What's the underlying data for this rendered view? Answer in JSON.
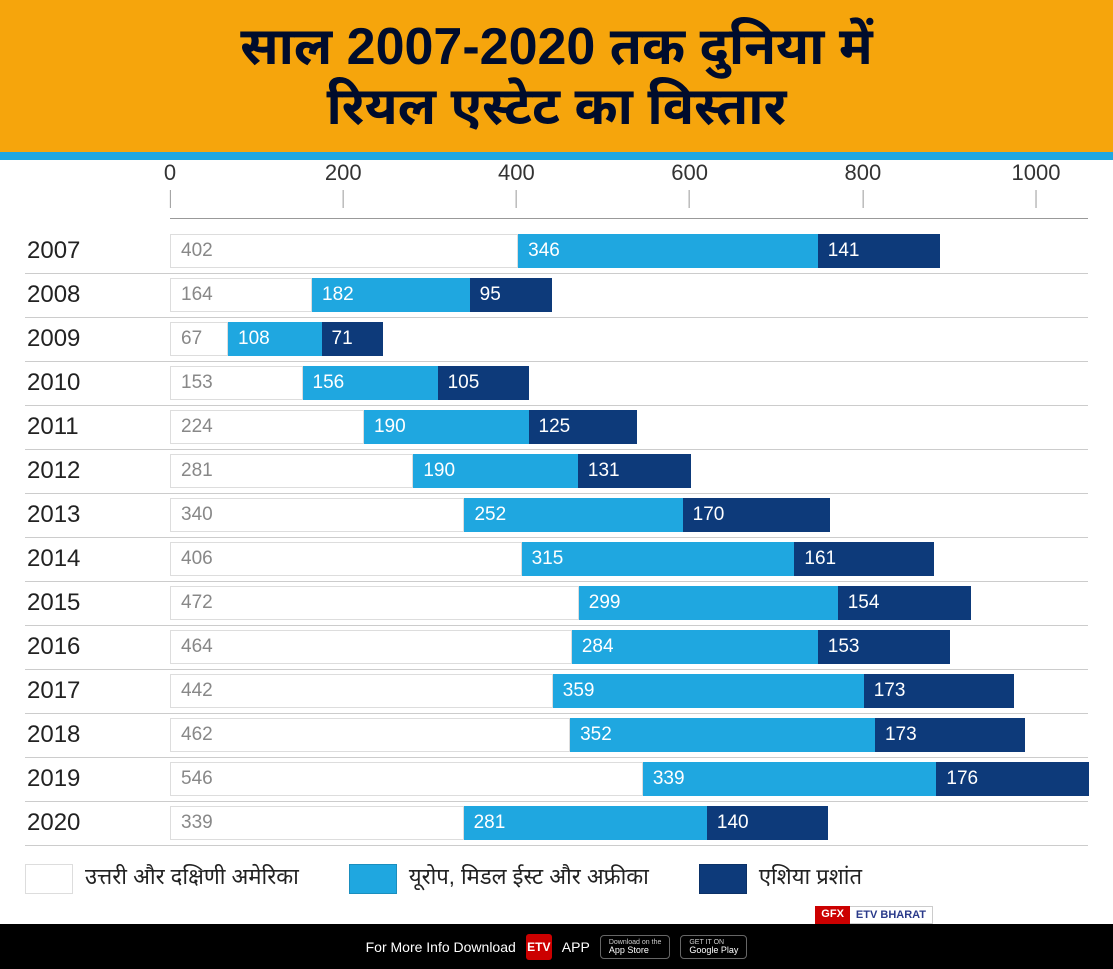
{
  "header": {
    "line1": "साल 2007-2020 तक दुनिया में",
    "line2": "रियल एस्टेट का विस्तार",
    "background_color": "#f6a50c",
    "text_color": "#000c2c",
    "font_size": 52
  },
  "divider_color": "#1fa7e0",
  "chart": {
    "type": "stacked-horizontal-bar",
    "x_axis": {
      "min": 0,
      "max": 1060,
      "ticks": [
        0,
        200,
        400,
        600,
        800,
        1000
      ],
      "tick_color": "#999999",
      "label_color": "#333333",
      "label_fontsize": 22
    },
    "series": [
      {
        "key": "americas",
        "label": "उत्तरी और दक्षिणी अमेरिका",
        "color": "#ffffff",
        "text_color": "#888888",
        "border": "#dddddd"
      },
      {
        "key": "emea",
        "label": "यूरोप, मिडल ईस्ट और अफ्रीका",
        "color": "#1fa7e0",
        "text_color": "#ffffff",
        "border": "none"
      },
      {
        "key": "apac",
        "label": "एशिया प्रशांत",
        "color": "#0d3a7a",
        "text_color": "#ffffff",
        "border": "none"
      }
    ],
    "rows": [
      {
        "year": "2007",
        "values": [
          402,
          346,
          141
        ]
      },
      {
        "year": "2008",
        "values": [
          164,
          182,
          95
        ]
      },
      {
        "year": "2009",
        "values": [
          67,
          108,
          71
        ]
      },
      {
        "year": "2010",
        "values": [
          153,
          156,
          105
        ]
      },
      {
        "year": "2011",
        "values": [
          224,
          190,
          125
        ]
      },
      {
        "year": "2012",
        "values": [
          281,
          190,
          131
        ]
      },
      {
        "year": "2013",
        "values": [
          340,
          252,
          170
        ]
      },
      {
        "year": "2014",
        "values": [
          406,
          315,
          161
        ]
      },
      {
        "year": "2015",
        "values": [
          472,
          299,
          154
        ]
      },
      {
        "year": "2016",
        "values": [
          464,
          284,
          153
        ]
      },
      {
        "year": "2017",
        "values": [
          442,
          359,
          173
        ]
      },
      {
        "year": "2018",
        "values": [
          462,
          352,
          173
        ]
      },
      {
        "year": "2019",
        "values": [
          546,
          339,
          176
        ]
      },
      {
        "year": "2020",
        "values": [
          339,
          281,
          140
        ]
      }
    ],
    "year_label_fontsize": 24,
    "value_label_fontsize": 19,
    "row_divider_color": "#cccccc"
  },
  "footer": {
    "text": "For More Info Download",
    "app_text": "APP",
    "appstore": {
      "small": "Download on the",
      "big": "App Store"
    },
    "googleplay": {
      "small": "GET IT ON",
      "big": "Google Play"
    },
    "gfx": "GFX",
    "etv": "ETV BHARAT"
  }
}
